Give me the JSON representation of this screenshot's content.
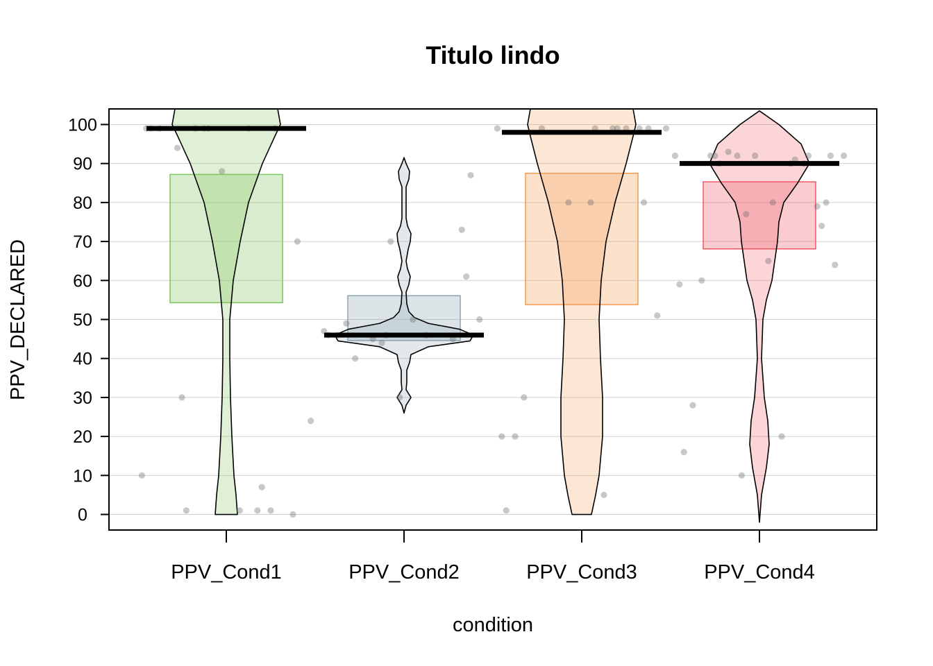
{
  "chart_data": {
    "type": "pirate",
    "title": "Titulo lindo",
    "xlabel": "condition",
    "ylabel": "PPV_DECLARED",
    "ylim": [
      -4,
      104
    ],
    "yticks": [
      0,
      10,
      20,
      30,
      40,
      50,
      60,
      70,
      80,
      90,
      100
    ],
    "grid": true,
    "categories": [
      "PPV_Cond1",
      "PPV_Cond2",
      "PPV_Cond3",
      "PPV_Cond4"
    ],
    "series": [
      {
        "category": "PPV_Cond1",
        "color": "#7FC45A",
        "center": 99,
        "box": [
          54.3,
          87.2
        ],
        "points": [
          99,
          99,
          99,
          99,
          99,
          99,
          99,
          99,
          94,
          88,
          70,
          30,
          24,
          10,
          7,
          1,
          1,
          1,
          1,
          0
        ],
        "violin": [
          [
            0,
            0.16
          ],
          [
            5,
            0.14
          ],
          [
            10,
            0.11
          ],
          [
            20,
            0.08
          ],
          [
            30,
            0.06
          ],
          [
            40,
            0.05
          ],
          [
            50,
            0.05
          ],
          [
            60,
            0.1
          ],
          [
            70,
            0.2
          ],
          [
            80,
            0.32
          ],
          [
            90,
            0.52
          ],
          [
            97,
            0.7
          ],
          [
            100,
            0.78
          ],
          [
            104,
            0.74
          ]
        ]
      },
      {
        "category": "PPV_Cond2",
        "color": "#8DA4B4",
        "center": 46,
        "box": [
          44.6,
          56.1
        ],
        "points": [
          87,
          73,
          70,
          61,
          50,
          50,
          49,
          47,
          46,
          46,
          46,
          46,
          45,
          45,
          44,
          40,
          30
        ],
        "violin": [
          [
            26,
            0.0
          ],
          [
            28,
            0.03
          ],
          [
            30,
            0.1
          ],
          [
            32,
            0.03
          ],
          [
            34,
            0.04
          ],
          [
            37,
            0.04
          ],
          [
            39,
            0.08
          ],
          [
            41,
            0.1
          ],
          [
            43,
            0.35
          ],
          [
            44.5,
            0.95
          ],
          [
            46,
            1.0
          ],
          [
            47.5,
            0.8
          ],
          [
            49,
            0.35
          ],
          [
            50.5,
            0.15
          ],
          [
            52,
            0.07
          ],
          [
            54,
            0.04
          ],
          [
            57,
            0.03
          ],
          [
            59,
            0.07
          ],
          [
            61,
            0.09
          ],
          [
            63,
            0.05
          ],
          [
            65,
            0.03
          ],
          [
            68,
            0.06
          ],
          [
            70,
            0.09
          ],
          [
            72,
            0.1
          ],
          [
            74,
            0.05
          ],
          [
            76,
            0.03
          ],
          [
            80,
            0.03
          ],
          [
            84,
            0.03
          ],
          [
            86,
            0.07
          ],
          [
            88,
            0.08
          ],
          [
            90,
            0.03
          ],
          [
            91.5,
            0.0
          ]
        ]
      },
      {
        "category": "PPV_Cond3",
        "color": "#F59B52",
        "center": 98,
        "box": [
          53.8,
          87.5
        ],
        "points": [
          99,
          99,
          99,
          99,
          99,
          99,
          99,
          99,
          99,
          80,
          80,
          80,
          51,
          30,
          20,
          20,
          5,
          1
        ],
        "violin": [
          [
            0,
            0.14
          ],
          [
            5,
            0.2
          ],
          [
            10,
            0.25
          ],
          [
            20,
            0.3
          ],
          [
            30,
            0.3
          ],
          [
            40,
            0.27
          ],
          [
            50,
            0.25
          ],
          [
            60,
            0.28
          ],
          [
            70,
            0.35
          ],
          [
            80,
            0.48
          ],
          [
            90,
            0.64
          ],
          [
            97,
            0.74
          ],
          [
            100,
            0.78
          ],
          [
            104,
            0.74
          ]
        ]
      },
      {
        "category": "PPV_Cond4",
        "color": "#EE5662",
        "center": 90,
        "box": [
          68.1,
          85.3
        ],
        "points": [
          93,
          92,
          92,
          92,
          92,
          92,
          92,
          92,
          92,
          91,
          90,
          90,
          90,
          80,
          80,
          79,
          77,
          74,
          65,
          64,
          60,
          59,
          28,
          20,
          16,
          10
        ],
        "violin": [
          [
            -2,
            0.0
          ],
          [
            5,
            0.03
          ],
          [
            12,
            0.1
          ],
          [
            18,
            0.14
          ],
          [
            24,
            0.12
          ],
          [
            30,
            0.07
          ],
          [
            40,
            0.03
          ],
          [
            50,
            0.05
          ],
          [
            55,
            0.1
          ],
          [
            60,
            0.18
          ],
          [
            65,
            0.22
          ],
          [
            70,
            0.26
          ],
          [
            75,
            0.28
          ],
          [
            80,
            0.35
          ],
          [
            85,
            0.55
          ],
          [
            90,
            0.72
          ],
          [
            95,
            0.6
          ],
          [
            100,
            0.28
          ],
          [
            103.5,
            0.0
          ]
        ]
      }
    ]
  }
}
